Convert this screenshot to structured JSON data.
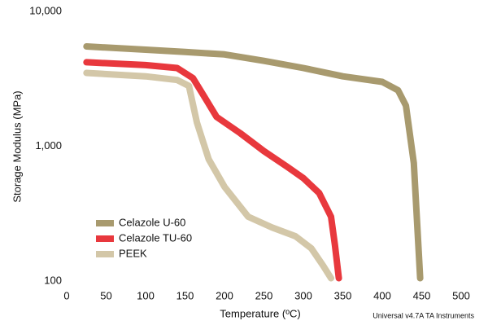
{
  "chart_data": {
    "type": "line",
    "x_label": "Temperature (ºC)",
    "y_label": "Storage Modulus (MPa)",
    "annotation": "Universal v4.7A TA Instruments",
    "xlim": [
      0,
      500
    ],
    "xticks": [
      0,
      50,
      100,
      150,
      200,
      250,
      300,
      350,
      400,
      450,
      500
    ],
    "ylim": [
      100,
      10000
    ],
    "ylog": true,
    "yticks": [
      {
        "value": 100,
        "label": "100"
      },
      {
        "value": 1000,
        "label": "1,000"
      },
      {
        "value": 10000,
        "label": "10,000"
      }
    ],
    "legend": "lower-left",
    "series": [
      {
        "name": "Celazole U-60",
        "color": "#a89a6e",
        "x": [
          25,
          100,
          150,
          200,
          250,
          300,
          350,
          400,
          420,
          430,
          440,
          448
        ],
        "values": [
          5500,
          5200,
          5000,
          4800,
          4300,
          3800,
          3300,
          3000,
          2600,
          2000,
          750,
          105
        ]
      },
      {
        "name": "Celazole TU-60",
        "color": "#e8383d",
        "x": [
          25,
          100,
          140,
          160,
          175,
          190,
          220,
          250,
          280,
          300,
          320,
          335,
          340,
          345
        ],
        "values": [
          4200,
          4000,
          3800,
          3200,
          2300,
          1650,
          1250,
          920,
          700,
          580,
          450,
          300,
          185,
          105
        ]
      },
      {
        "name": "PEEK",
        "color": "#d3c7a8",
        "x": [
          25,
          100,
          140,
          155,
          165,
          180,
          200,
          230,
          260,
          290,
          310,
          325,
          335
        ],
        "values": [
          3500,
          3300,
          3100,
          2800,
          1500,
          800,
          500,
          300,
          250,
          215,
          175,
          130,
          105
        ]
      }
    ]
  }
}
